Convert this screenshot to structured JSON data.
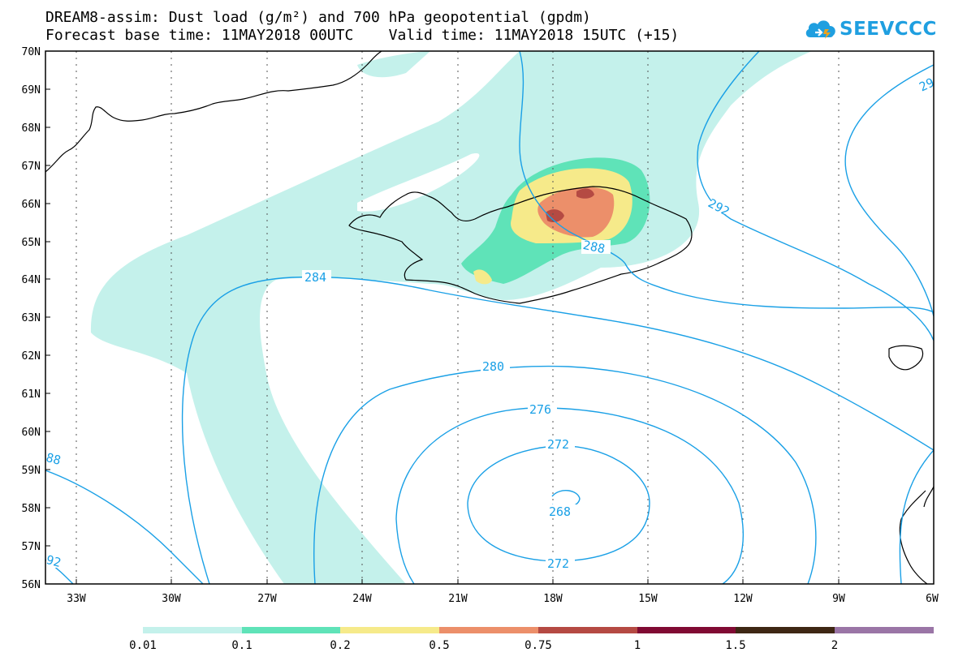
{
  "title": {
    "line1": "DREAM8-assim: Dust load (g/m²) and 700 hPa geopotential (gpdm)",
    "line2": "Forecast base time: 11MAY2018 00UTC    Valid time: 11MAY2018 15UTC (+15)"
  },
  "logo": {
    "text": "SEEVCCC",
    "icon": "cloud-icon"
  },
  "axes": {
    "lat_labels": [
      "70N",
      "69N",
      "68N",
      "67N",
      "66N",
      "65N",
      "64N",
      "63N",
      "62N",
      "61N",
      "60N",
      "59N",
      "58N",
      "57N",
      "56N"
    ],
    "lon_labels": [
      "33W",
      "30W",
      "27W",
      "24W",
      "21W",
      "18W",
      "15W",
      "12W",
      "9W",
      "6W"
    ]
  },
  "contour_labels": [
    "284",
    "288",
    "292",
    "29",
    "280",
    "276",
    "272",
    "268",
    "272",
    "88",
    "92"
  ],
  "colorbar": {
    "labels": [
      "0.01",
      "0.1",
      "0.2",
      "0.5",
      "0.75",
      "1",
      "1.5",
      "2"
    ],
    "colors": [
      "#c4f1eb",
      "#5fe3b8",
      "#f6ea8a",
      "#ec8f6a",
      "#b54a43",
      "#800a33",
      "#3e2714",
      "#9a75a6"
    ]
  },
  "colors": {
    "contour": "#1aa0e6",
    "coast": "#000000"
  },
  "chart_data": {
    "type": "map",
    "variable": "Dust load (g/m²) and 700 hPa geopotential (gpdm)",
    "region": {
      "lon_range": [
        "33W",
        "6W"
      ],
      "lat_range": [
        "56N",
        "70N"
      ]
    },
    "geopotential_contours_gpdm": [
      268,
      272,
      276,
      280,
      284,
      288,
      292
    ],
    "dust_levels_g_m2": [
      0.01,
      0.1,
      0.2,
      0.5,
      0.75,
      1,
      1.5,
      2
    ],
    "max_dust_region": "north-east Iceland",
    "low_center_gpdm": 268
  }
}
